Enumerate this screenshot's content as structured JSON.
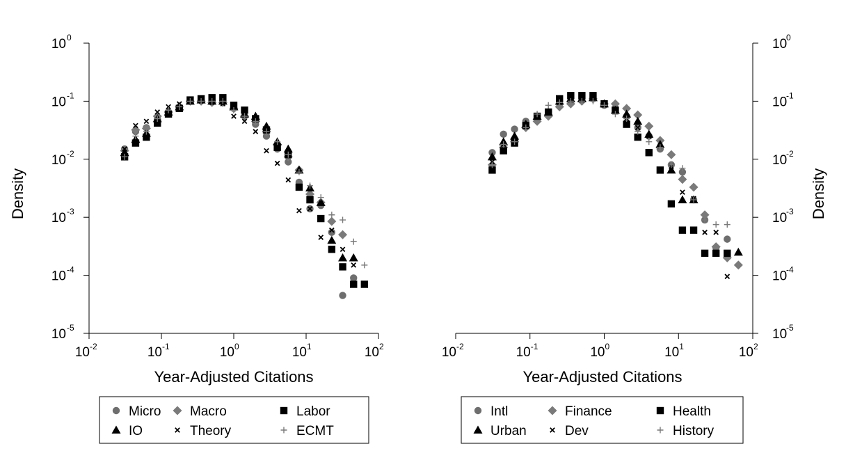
{
  "chart_data": [
    {
      "type": "scatter",
      "xlabel": "Year-Adjusted Citations",
      "ylabel": "Density",
      "xscale": "log",
      "yscale": "log",
      "xlim": [
        0.01,
        100
      ],
      "ylim": [
        1e-05,
        1
      ],
      "x_ticks": [
        {
          "base": "10",
          "exp": "-2"
        },
        {
          "base": "10",
          "exp": "-1"
        },
        {
          "base": "10",
          "exp": "0"
        },
        {
          "base": "10",
          "exp": "1"
        },
        {
          "base": "10",
          "exp": "2"
        }
      ],
      "y_ticks": [
        {
          "base": "10",
          "exp": "0"
        },
        {
          "base": "10",
          "exp": "-1"
        },
        {
          "base": "10",
          "exp": "-2"
        },
        {
          "base": "10",
          "exp": "-3"
        },
        {
          "base": "10",
          "exp": "-4"
        },
        {
          "base": "10",
          "exp": "-5"
        }
      ],
      "y_axis_side": "left",
      "grid": false,
      "legend_position": "bottom",
      "series": [
        {
          "name": "Micro",
          "marker": "circle",
          "color": "#6e6e6e",
          "x": [
            0.031,
            0.044,
            0.062,
            0.088,
            0.125,
            0.177,
            0.25,
            0.354,
            0.5,
            0.707,
            1.0,
            1.41,
            2.0,
            2.83,
            4.0,
            5.66,
            8.0,
            11.3,
            16.0,
            22.6,
            32.0,
            45.3
          ],
          "y": [
            0.015,
            0.03,
            0.035,
            0.05,
            0.065,
            0.08,
            0.1,
            0.105,
            0.1,
            0.1,
            0.075,
            0.055,
            0.04,
            0.025,
            0.015,
            0.009,
            0.004,
            0.0014,
            0.0016,
            0.00055,
            4.5e-05,
            9e-05
          ]
        },
        {
          "name": "Macro",
          "marker": "diamond",
          "color": "#7a7a7a",
          "x": [
            0.031,
            0.044,
            0.062,
            0.088,
            0.125,
            0.177,
            0.25,
            0.354,
            0.5,
            0.707,
            1.0,
            1.41,
            2.0,
            2.83,
            4.0,
            5.66,
            8.0,
            11.3,
            16.0,
            22.6,
            32.0
          ],
          "y": [
            0.014,
            0.032,
            0.034,
            0.055,
            0.065,
            0.08,
            0.1,
            0.1,
            0.095,
            0.095,
            0.075,
            0.055,
            0.045,
            0.03,
            0.018,
            0.011,
            0.0065,
            0.0025,
            0.0018,
            0.00085,
            0.0005
          ]
        },
        {
          "name": "Labor",
          "marker": "square",
          "color": "#000000",
          "x": [
            0.031,
            0.044,
            0.062,
            0.088,
            0.125,
            0.177,
            0.25,
            0.354,
            0.5,
            0.707,
            1.0,
            1.41,
            2.0,
            2.83,
            4.0,
            5.66,
            8.0,
            11.3,
            16.0,
            22.6,
            32.0,
            45.3,
            64.0
          ],
          "y": [
            0.011,
            0.019,
            0.024,
            0.042,
            0.06,
            0.075,
            0.105,
            0.11,
            0.115,
            0.115,
            0.085,
            0.07,
            0.05,
            0.032,
            0.016,
            0.012,
            0.0033,
            0.002,
            0.00095,
            0.00028,
            0.00014,
            7e-05,
            7e-05
          ]
        },
        {
          "name": "IO",
          "marker": "triangle",
          "color": "#000000",
          "x": [
            0.031,
            0.044,
            0.062,
            0.088,
            0.125,
            0.177,
            0.25,
            0.354,
            0.5,
            0.707,
            1.0,
            1.41,
            2.0,
            2.83,
            4.0,
            5.66,
            8.0,
            11.3,
            16.0,
            22.6,
            32.0,
            45.3
          ],
          "y": [
            0.013,
            0.022,
            0.028,
            0.05,
            0.065,
            0.08,
            0.1,
            0.105,
            0.1,
            0.1,
            0.08,
            0.06,
            0.055,
            0.037,
            0.02,
            0.015,
            0.0065,
            0.0032,
            0.0018,
            0.0004,
            0.0002,
            0.0002
          ]
        },
        {
          "name": "Theory",
          "marker": "x",
          "color": "#000000",
          "x": [
            0.031,
            0.044,
            0.062,
            0.088,
            0.125,
            0.177,
            0.25,
            0.354,
            0.5,
            0.707,
            1.0,
            1.41,
            2.0,
            2.83,
            4.0,
            5.66,
            8.0,
            11.3,
            16.0,
            22.6,
            32.0,
            45.3
          ],
          "y": [
            0.015,
            0.038,
            0.045,
            0.065,
            0.08,
            0.09,
            0.1,
            0.1,
            0.095,
            0.09,
            0.055,
            0.045,
            0.03,
            0.014,
            0.0085,
            0.0044,
            0.0013,
            0.0014,
            0.00045,
            0.0006,
            0.00028,
            0.00015
          ]
        },
        {
          "name": "ECMT",
          "marker": "plus",
          "color": "#7a7a7a",
          "x": [
            0.031,
            0.044,
            0.062,
            0.088,
            0.125,
            0.177,
            0.25,
            0.354,
            0.5,
            0.707,
            1.0,
            1.41,
            2.0,
            2.83,
            4.0,
            5.66,
            8.0,
            11.3,
            16.0,
            22.6,
            32.0,
            45.3,
            64.0
          ],
          "y": [
            0.011,
            0.025,
            0.03,
            0.05,
            0.07,
            0.08,
            0.1,
            0.1,
            0.1,
            0.1,
            0.07,
            0.055,
            0.045,
            0.03,
            0.02,
            0.012,
            0.006,
            0.0035,
            0.0022,
            0.0011,
            0.0009,
            0.00038,
            0.00015
          ]
        }
      ]
    },
    {
      "type": "scatter",
      "xlabel": "Year-Adjusted Citations",
      "ylabel": "Density",
      "xscale": "log",
      "yscale": "log",
      "xlim": [
        0.01,
        100
      ],
      "ylim": [
        1e-05,
        1
      ],
      "x_ticks": [
        {
          "base": "10",
          "exp": "-2"
        },
        {
          "base": "10",
          "exp": "-1"
        },
        {
          "base": "10",
          "exp": "0"
        },
        {
          "base": "10",
          "exp": "1"
        },
        {
          "base": "10",
          "exp": "2"
        }
      ],
      "y_ticks": [
        {
          "base": "10",
          "exp": "0"
        },
        {
          "base": "10",
          "exp": "-1"
        },
        {
          "base": "10",
          "exp": "-2"
        },
        {
          "base": "10",
          "exp": "-3"
        },
        {
          "base": "10",
          "exp": "-4"
        },
        {
          "base": "10",
          "exp": "-5"
        }
      ],
      "y_axis_side": "right",
      "grid": false,
      "legend_position": "bottom",
      "series": [
        {
          "name": "Intl",
          "marker": "circle",
          "color": "#6e6e6e",
          "x": [
            0.031,
            0.044,
            0.062,
            0.088,
            0.125,
            0.177,
            0.25,
            0.354,
            0.5,
            0.707,
            1.0,
            1.41,
            2.0,
            2.83,
            4.0,
            5.66,
            8.0,
            11.3,
            16.0,
            22.6,
            32.0,
            45.3
          ],
          "y": [
            0.013,
            0.027,
            0.033,
            0.045,
            0.055,
            0.065,
            0.09,
            0.1,
            0.105,
            0.11,
            0.085,
            0.075,
            0.055,
            0.035,
            0.025,
            0.015,
            0.008,
            0.006,
            0.002,
            0.0009,
            0.0003,
            0.00042
          ]
        },
        {
          "name": "Finance",
          "marker": "diamond",
          "color": "#7a7a7a",
          "x": [
            0.031,
            0.044,
            0.062,
            0.088,
            0.125,
            0.177,
            0.25,
            0.354,
            0.5,
            0.707,
            1.0,
            1.41,
            2.0,
            2.83,
            4.0,
            5.66,
            8.0,
            11.3,
            16.0,
            22.6,
            32.0,
            45.3,
            64.0
          ],
          "y": [
            0.008,
            0.016,
            0.02,
            0.035,
            0.045,
            0.055,
            0.08,
            0.09,
            0.1,
            0.11,
            0.09,
            0.09,
            0.075,
            0.058,
            0.037,
            0.021,
            0.012,
            0.0045,
            0.0033,
            0.0011,
            0.00031,
            0.0002,
            0.00015
          ]
        },
        {
          "name": "Health",
          "marker": "square",
          "color": "#000000",
          "x": [
            0.031,
            0.044,
            0.062,
            0.088,
            0.125,
            0.177,
            0.25,
            0.354,
            0.5,
            0.707,
            1.0,
            1.41,
            2.0,
            2.83,
            4.0,
            5.66,
            8.0,
            11.3,
            16.0,
            22.6,
            32.0,
            45.3
          ],
          "y": [
            0.0065,
            0.014,
            0.019,
            0.038,
            0.055,
            0.065,
            0.11,
            0.125,
            0.125,
            0.125,
            0.09,
            0.07,
            0.04,
            0.024,
            0.013,
            0.0065,
            0.0017,
            0.0006,
            0.0006,
            0.00024,
            0.00024,
            0.00024
          ]
        },
        {
          "name": "Urban",
          "marker": "triangle",
          "color": "#000000",
          "x": [
            0.031,
            0.044,
            0.062,
            0.088,
            0.125,
            0.177,
            0.25,
            0.354,
            0.5,
            0.707,
            1.0,
            1.41,
            2.0,
            2.83,
            4.0,
            5.66,
            8.0,
            11.3,
            16.0,
            64.0
          ],
          "y": [
            0.011,
            0.02,
            0.025,
            0.04,
            0.055,
            0.065,
            0.1,
            0.11,
            0.11,
            0.115,
            0.09,
            0.07,
            0.06,
            0.045,
            0.027,
            0.018,
            0.0065,
            0.002,
            0.002,
            0.00025
          ]
        },
        {
          "name": "Dev",
          "marker": "x",
          "color": "#000000",
          "x": [
            0.031,
            0.044,
            0.062,
            0.088,
            0.125,
            0.177,
            0.25,
            0.354,
            0.5,
            0.707,
            1.0,
            1.41,
            2.0,
            2.83,
            4.0,
            5.66,
            8.0,
            11.3,
            16.0,
            22.6,
            32.0,
            45.3
          ],
          "y": [
            0.009,
            0.018,
            0.022,
            0.04,
            0.055,
            0.065,
            0.095,
            0.105,
            0.105,
            0.11,
            0.09,
            0.07,
            0.05,
            0.035,
            0.025,
            0.017,
            0.0075,
            0.0027,
            0.0021,
            0.00055,
            0.00055,
            9.55e-05
          ]
        },
        {
          "name": "History",
          "marker": "plus",
          "color": "#7a7a7a",
          "x": [
            0.031,
            0.044,
            0.062,
            0.088,
            0.125,
            0.177,
            0.25,
            0.354,
            0.5,
            0.707,
            1.0,
            1.41,
            2.0,
            2.83,
            4.0,
            5.66,
            8.0,
            11.3,
            16.0,
            22.6,
            32.0,
            45.3
          ],
          "y": [
            0.008,
            0.018,
            0.02,
            0.035,
            0.06,
            0.085,
            0.095,
            0.1,
            0.1,
            0.1,
            0.085,
            0.06,
            0.05,
            0.03,
            0.02,
            0.016,
            0.008,
            0.007,
            0.002,
            0.0009,
            0.00075,
            0.00075
          ]
        }
      ]
    }
  ]
}
